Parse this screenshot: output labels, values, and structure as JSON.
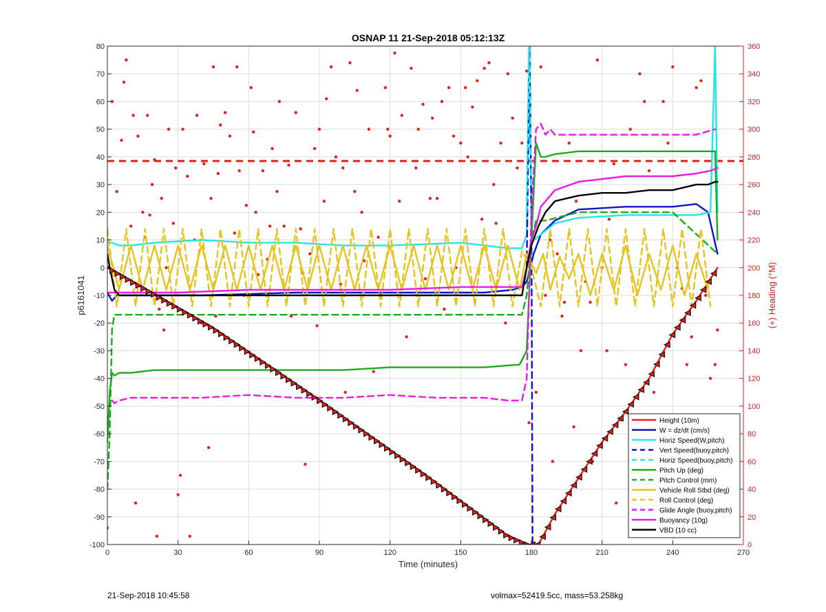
{
  "footer": {
    "timestamp": "21-Sep-2018 10:45:58",
    "info": "volmax=52419.5cc, mass=53.258kg"
  },
  "chart_data": {
    "type": "line",
    "title": "OSNAP 11 21-Sep-2018 05:12:13Z",
    "xlabel": "Time (minutes)",
    "ylabel": "p6161041",
    "y2label": "(+) Heading (°M)",
    "xlim": [
      0,
      270
    ],
    "ylim": [
      -100,
      80
    ],
    "y2lim": [
      0,
      360
    ],
    "xticks": [
      0,
      30,
      60,
      90,
      120,
      150,
      180,
      210,
      240,
      270
    ],
    "yticks": [
      -100,
      -90,
      -80,
      -70,
      -60,
      -50,
      -40,
      -30,
      -20,
      -10,
      0,
      10,
      20,
      30,
      40,
      50,
      60,
      70,
      80
    ],
    "y2ticks": [
      0,
      20,
      40,
      60,
      80,
      100,
      120,
      140,
      160,
      180,
      200,
      220,
      240,
      260,
      280,
      300,
      320,
      340,
      360
    ],
    "grid": true,
    "legend_position": "bottom-right",
    "colors": {
      "red": "#e0201b",
      "blue": "#1111cc",
      "cyan": "#22e6e6",
      "green": "#1aab1a",
      "yellow": "#e6c21a",
      "magenta": "#e61ae6",
      "black": "#000000",
      "heading_axis": "#d42020"
    },
    "series": [
      {
        "name": "Height (10m)",
        "color": "red",
        "style": "solid",
        "x": [
          0,
          45,
          90,
          135,
          170,
          178,
          180,
          183,
          190,
          200,
          210,
          220,
          230,
          240,
          250,
          259
        ],
        "y": [
          0,
          -22,
          -48,
          -75,
          -97,
          -100,
          -100,
          -100,
          -89,
          -76,
          -63,
          -52,
          -40,
          -24,
          -12,
          0
        ]
      },
      {
        "name": "W = dz/dt (cm/s)",
        "color": "blue",
        "style": "solid",
        "x": [
          0,
          2,
          4,
          8,
          20,
          40,
          80,
          120,
          160,
          172,
          176,
          178,
          181,
          184,
          190,
          200,
          220,
          240,
          250,
          255,
          259
        ],
        "y": [
          -9,
          -12,
          -10,
          -10,
          -10,
          -10,
          -9,
          -9,
          -9,
          -8,
          -7,
          -5,
          5,
          12,
          17,
          21,
          22,
          22,
          23,
          20,
          5
        ]
      },
      {
        "name": "Horiz Speed(W,pitch)",
        "color": "cyan",
        "style": "solid",
        "x": [
          0,
          2,
          5,
          10,
          20,
          40,
          60,
          80,
          100,
          120,
          150,
          170,
          176,
          178,
          179,
          180,
          181,
          184,
          190,
          200,
          220,
          240,
          250,
          256,
          258,
          259
        ],
        "y": [
          9,
          9,
          8,
          8,
          9,
          10,
          9,
          9,
          8,
          8,
          9,
          7,
          7,
          12,
          80,
          15,
          10,
          12,
          16,
          18,
          19,
          19,
          19,
          20,
          80,
          20
        ]
      },
      {
        "name": "Vert Speed(buoy,pitch)",
        "color": "blue",
        "style": "dashed",
        "x": [
          178,
          179.2,
          180,
          180.5
        ],
        "y": [
          0,
          80,
          20,
          -100
        ]
      },
      {
        "name": "Horiz Speed(buoy,pitch)",
        "color": "cyan",
        "style": "dashed",
        "x": [
          178,
          179,
          180
        ],
        "y": [
          20,
          80,
          30
        ]
      },
      {
        "name": "Pitch Up (deg)",
        "color": "green",
        "style": "solid",
        "x": [
          0,
          1,
          2,
          3,
          5,
          10,
          20,
          40,
          60,
          80,
          100,
          120,
          140,
          160,
          175,
          178,
          180,
          182,
          184,
          186,
          190,
          200,
          220,
          240,
          255,
          258,
          259
        ],
        "y": [
          -63,
          -45,
          -38,
          -39,
          -38,
          -38,
          -37,
          -37,
          -37,
          -37,
          -37,
          -36,
          -36,
          -36,
          -35,
          -30,
          10,
          45,
          40,
          40,
          41,
          42,
          42,
          42,
          42,
          42,
          10
        ]
      },
      {
        "name": "Pitch Control (mm)",
        "color": "green",
        "style": "dashed",
        "x": [
          0,
          1,
          2,
          3,
          6,
          40,
          100,
          160,
          176,
          178,
          180,
          182,
          184,
          186,
          200,
          240,
          259
        ],
        "y": [
          -80,
          -60,
          -22,
          -17,
          -17,
          -17,
          -17,
          -17,
          -17,
          -10,
          10,
          17,
          17,
          17,
          20,
          20,
          5
        ]
      },
      {
        "name": "Vehicle Roll Stbd (deg)",
        "color": "yellow",
        "style": "solid",
        "x": [
          0,
          5,
          10,
          15,
          20,
          25,
          30,
          35,
          40,
          45,
          50,
          55,
          60,
          65,
          70,
          75,
          80,
          85,
          90,
          95,
          100,
          105,
          110,
          115,
          120,
          125,
          130,
          135,
          140,
          145,
          150,
          155,
          160,
          165,
          170,
          175,
          178,
          182,
          185,
          188,
          192,
          196,
          200,
          205,
          210,
          215,
          220,
          225,
          230,
          235,
          240,
          245,
          250,
          255
        ],
        "y": [
          8,
          -8,
          8,
          -8,
          8,
          -8,
          8,
          -8,
          8,
          -8,
          8,
          -8,
          8,
          -8,
          8,
          -8,
          8,
          -8,
          8,
          -8,
          8,
          -8,
          8,
          -8,
          8,
          -8,
          8,
          -8,
          8,
          -8,
          8,
          -8,
          8,
          -8,
          8,
          -8,
          5,
          -2,
          5,
          -8,
          4,
          -4,
          5,
          -10,
          5,
          -8,
          8,
          -10,
          5,
          -8,
          8,
          -10,
          5,
          -8
        ]
      },
      {
        "name": "Roll Control (deg)",
        "color": "yellow",
        "style": "dashed",
        "x": [
          0,
          4,
          8,
          12,
          16,
          20,
          24,
          28,
          32,
          36,
          40,
          44,
          48,
          52,
          56,
          60,
          64,
          68,
          72,
          76,
          80,
          84,
          88,
          92,
          96,
          100,
          104,
          108,
          112,
          116,
          120,
          124,
          128,
          132,
          136,
          140,
          144,
          148,
          152,
          156,
          160,
          164,
          168,
          172,
          176,
          180,
          184,
          188,
          192,
          196,
          200,
          204,
          208,
          212,
          216,
          220,
          224,
          228,
          232,
          236,
          240,
          244,
          248,
          252,
          256
        ],
        "y": [
          14,
          -14,
          14,
          -14,
          14,
          -14,
          14,
          -14,
          14,
          -14,
          14,
          -14,
          14,
          -14,
          14,
          -14,
          14,
          -14,
          14,
          -14,
          14,
          -14,
          14,
          -14,
          14,
          -14,
          14,
          -14,
          14,
          -14,
          14,
          -14,
          14,
          -14,
          14,
          -14,
          14,
          -14,
          14,
          -14,
          14,
          -14,
          14,
          -14,
          6,
          0,
          -14,
          14,
          -14,
          14,
          -14,
          14,
          -14,
          14,
          -14,
          14,
          -14,
          14,
          -14,
          14,
          -14,
          14,
          -14,
          14,
          -14
        ]
      },
      {
        "name": "Glide Angle (buoy,pitch)",
        "color": "magenta",
        "style": "dashed",
        "x": [
          2,
          3,
          5,
          10,
          20,
          40,
          60,
          80,
          100,
          120,
          140,
          160,
          170,
          176,
          178,
          180,
          182,
          184,
          186,
          188,
          190,
          200,
          220,
          240,
          250,
          258
        ],
        "y": [
          -48,
          -49,
          -48,
          -47,
          -47,
          -47,
          -46,
          -47,
          -47,
          -46,
          -47,
          -47,
          -48,
          -48,
          -40,
          20,
          50,
          52,
          48,
          50,
          48,
          48,
          48,
          48,
          48,
          50
        ]
      },
      {
        "name": "Buoyancy (10g)",
        "color": "magenta",
        "style": "solid",
        "x": [
          0,
          10,
          30,
          60,
          90,
          120,
          150,
          170,
          176,
          178,
          180,
          182,
          184,
          190,
          200,
          210,
          220,
          240,
          250,
          256,
          259
        ],
        "y": [
          -9,
          -9,
          -9,
          -8,
          -8,
          -8,
          -7,
          -7,
          -7,
          0,
          10,
          15,
          22,
          28,
          31,
          32,
          33,
          33,
          34,
          35,
          36
        ]
      },
      {
        "name": "VBD (10 cc)",
        "color": "black",
        "style": "solid",
        "x": [
          0,
          1,
          3,
          5,
          20,
          60,
          120,
          176,
          178,
          180,
          183,
          186,
          190,
          200,
          210,
          220,
          230,
          240,
          250,
          255,
          258,
          259
        ],
        "y": [
          5,
          0,
          -8,
          -10,
          -10,
          -10,
          -10,
          -10,
          0,
          8,
          15,
          20,
          24,
          26,
          27,
          27,
          28,
          28,
          30,
          30,
          31,
          31
        ]
      }
    ],
    "reference_lines": [
      {
        "axis": "y2",
        "value": 277,
        "color": "red",
        "style": "dashed"
      }
    ],
    "heading_points": {
      "color": "red",
      "axis": "y2",
      "x": [
        0,
        2,
        4,
        6,
        7,
        8,
        10,
        11,
        12,
        13,
        15,
        16,
        17,
        18,
        19,
        20,
        21,
        22,
        23,
        24,
        25,
        26,
        28,
        29,
        30,
        31,
        32,
        34,
        35,
        37,
        38,
        40,
        41,
        43,
        44,
        45,
        46,
        47,
        48,
        50,
        52,
        54,
        55,
        56,
        58,
        59,
        61,
        62,
        63,
        64,
        66,
        68,
        69,
        70,
        72,
        73,
        75,
        77,
        78,
        80,
        82,
        83,
        84,
        86,
        88,
        89,
        90,
        92,
        93,
        95,
        97,
        99,
        100,
        101,
        103,
        105,
        106,
        108,
        109,
        111,
        113,
        115,
        116,
        118,
        119,
        120,
        122,
        124,
        125,
        127,
        129,
        131,
        132,
        134,
        135,
        137,
        138,
        140,
        142,
        143,
        145,
        147,
        148,
        150,
        152,
        153,
        155,
        157,
        159,
        160,
        162,
        164,
        165,
        167,
        169,
        170,
        172,
        174,
        176,
        178,
        179,
        182,
        184,
        186,
        188,
        189,
        191,
        193,
        194,
        196,
        198,
        199,
        201,
        203,
        205,
        206,
        208,
        210,
        212,
        213,
        215,
        216,
        218,
        220,
        222,
        224,
        226,
        228,
        230,
        232,
        234,
        236,
        238,
        240,
        242,
        244,
        246,
        248,
        250,
        252,
        254,
        256,
        258,
        259
      ],
      "y": [
        12,
        320,
        255,
        292,
        334,
        350,
        230,
        310,
        30,
        295,
        240,
        222,
        310,
        238,
        260,
        278,
        6,
        170,
        250,
        155,
        200,
        300,
        232,
        272,
        36,
        50,
        300,
        266,
        6,
        220,
        310,
        160,
        275,
        70,
        250,
        345,
        165,
        268,
        303,
        312,
        295,
        225,
        345,
        270,
        180,
        245,
        330,
        298,
        240,
        195,
        270,
        206,
        230,
        286,
        255,
        320,
        230,
        274,
        165,
        312,
        228,
        196,
        58,
        210,
        286,
        158,
        300,
        248,
        322,
        345,
        280,
        188,
        272,
        110,
        348,
        255,
        328,
        240,
        205,
        300,
        125,
        222,
        180,
        330,
        300,
        295,
        355,
        248,
        310,
        150,
        344,
        272,
        300,
        318,
        192,
        250,
        308,
        250,
        320,
        170,
        330,
        295,
        200,
        290,
        330,
        280,
        316,
        335,
        235,
        344,
        348,
        260,
        232,
        290,
        160,
        340,
        308,
        272,
        290,
        342,
        88,
        110,
        345,
        180,
        220,
        60,
        210,
        165,
        175,
        290,
        85,
        248,
        140,
        190,
        175,
        60,
        350,
        200,
        140,
        235,
        275,
        30,
        90,
        130,
        300,
        50,
        340,
        320,
        270,
        110,
        30,
        320,
        290,
        345,
        200,
        185,
        130,
        150,
        330,
        335,
        180,
        120,
        130,
        155
      ]
    }
  }
}
